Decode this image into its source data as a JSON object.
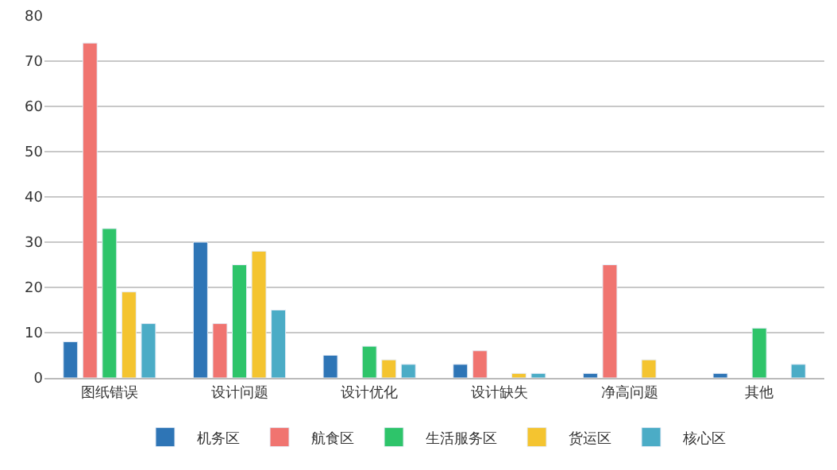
{
  "chart_data": {
    "type": "bar",
    "categories": [
      "图纸错误",
      "设计问题",
      "设计优化",
      "设计缺失",
      "净高问题",
      "其他"
    ],
    "series": [
      {
        "name": "机务区",
        "color": "#2e75b6",
        "values": [
          8,
          30,
          5,
          3,
          1,
          1
        ]
      },
      {
        "name": "航食区",
        "color": "#f07470",
        "values": [
          74,
          12,
          null,
          6,
          25,
          null
        ]
      },
      {
        "name": "生活服务区",
        "color": "#2ec46a",
        "values": [
          33,
          25,
          7,
          null,
          null,
          11
        ]
      },
      {
        "name": "货运区",
        "color": "#f4c430",
        "values": [
          19,
          28,
          4,
          1,
          4,
          null
        ]
      },
      {
        "name": "核心区",
        "color": "#4bacc6",
        "values": [
          12,
          15,
          3,
          1,
          null,
          3
        ]
      }
    ],
    "ylim": [
      0,
      80
    ],
    "yticks": [
      0,
      10,
      20,
      30,
      40,
      50,
      60,
      70,
      80
    ],
    "grid": "y",
    "legend": "bottom"
  }
}
